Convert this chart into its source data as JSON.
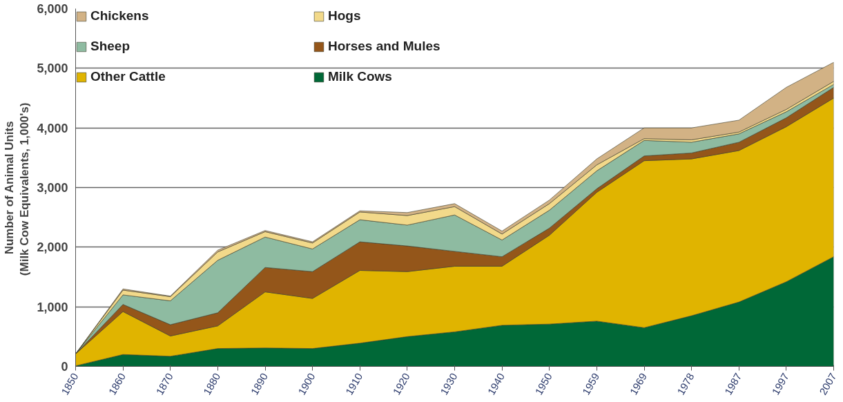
{
  "chart_data": {
    "type": "area",
    "stacked": true,
    "ylabel": "Number of Animal Units\n(Milk Cow  Equivalents, 1,000's)",
    "categories": [
      "1850",
      "1860",
      "1870",
      "1880",
      "1890",
      "1900",
      "1910",
      "1920",
      "1930",
      "1940",
      "1950",
      "1959",
      "1969",
      "1978",
      "1987",
      "1997",
      "2007"
    ],
    "series": [
      {
        "name": "Milk Cows",
        "color": "#006837",
        "values": [
          10,
          200,
          170,
          300,
          310,
          300,
          390,
          500,
          580,
          690,
          710,
          760,
          650,
          850,
          1080,
          1420,
          1840
        ]
      },
      {
        "name": "Other Cattle",
        "color": "#e0b400",
        "values": [
          200,
          720,
          340,
          380,
          940,
          840,
          1220,
          1090,
          1100,
          990,
          1490,
          2160,
          2800,
          2630,
          2540,
          2600,
          2660
        ]
      },
      {
        "name": "Horses and Mules",
        "color": "#94561a",
        "values": [
          0,
          120,
          190,
          220,
          410,
          450,
          480,
          430,
          250,
          160,
          120,
          60,
          80,
          100,
          140,
          150,
          180
        ]
      },
      {
        "name": "Sheep",
        "color": "#8ebba1",
        "values": [
          0,
          160,
          400,
          880,
          510,
          380,
          370,
          350,
          610,
          280,
          300,
          300,
          260,
          180,
          140,
          100,
          50
        ]
      },
      {
        "name": "Hogs",
        "color": "#f2d98a",
        "values": [
          0,
          80,
          70,
          140,
          90,
          100,
          130,
          160,
          140,
          100,
          110,
          100,
          30,
          40,
          30,
          40,
          50
        ]
      },
      {
        "name": "Chickens",
        "color": "#d2b285",
        "values": [
          0,
          20,
          10,
          30,
          20,
          20,
          20,
          50,
          50,
          50,
          60,
          100,
          180,
          200,
          200,
          370,
          320
        ]
      }
    ],
    "ylim": [
      0,
      6000
    ],
    "yticks": [
      {
        "value": 0,
        "label": "0"
      },
      {
        "value": 1000,
        "label": "1,000"
      },
      {
        "value": 2000,
        "label": "2,000"
      },
      {
        "value": 3000,
        "label": "3,000"
      },
      {
        "value": 4000,
        "label": "4,000"
      },
      {
        "value": 5000,
        "label": "5,000"
      },
      {
        "value": 6000,
        "label": "6,000"
      }
    ],
    "grid": "y",
    "legend": "top left"
  }
}
